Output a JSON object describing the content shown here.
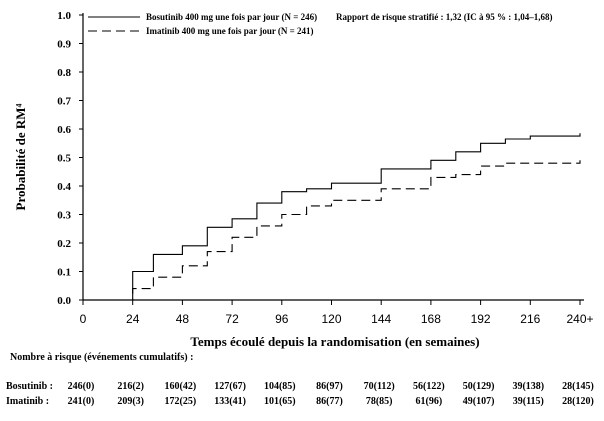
{
  "chart_data": {
    "type": "line",
    "ylabel": "Probabilité de RM⁴",
    "xlabel": "Temps écoulé depuis la randomisation (en semaines)",
    "annotation": "Rapport de risque stratifié : 1,32 (IC à 95 % : 1,04–1,68)",
    "xlim": [
      0,
      240
    ],
    "ylim": [
      0,
      1.0
    ],
    "x_ticks": [
      "0",
      "24",
      "48",
      "72",
      "96",
      "120",
      "144",
      "168",
      "192",
      "216",
      "240+"
    ],
    "y_ticks": [
      "0.0",
      "0.1",
      "0.2",
      "0.3",
      "0.4",
      "0.5",
      "0.6",
      "0.7",
      "0.8",
      "0.9",
      "1.0"
    ],
    "legend_position": "top-left",
    "series": [
      {
        "name": "Bosutinib 400 mg une fois par jour (N = 246)",
        "style": "solid",
        "points": [
          [
            0,
            0
          ],
          [
            24,
            0
          ],
          [
            24,
            0.1
          ],
          [
            34,
            0.1
          ],
          [
            34,
            0.16
          ],
          [
            48,
            0.16
          ],
          [
            48,
            0.19
          ],
          [
            60,
            0.19
          ],
          [
            60,
            0.255
          ],
          [
            72,
            0.255
          ],
          [
            72,
            0.285
          ],
          [
            84,
            0.285
          ],
          [
            84,
            0.34
          ],
          [
            96,
            0.34
          ],
          [
            96,
            0.38
          ],
          [
            108,
            0.38
          ],
          [
            108,
            0.39
          ],
          [
            120,
            0.39
          ],
          [
            120,
            0.41
          ],
          [
            144,
            0.41
          ],
          [
            144,
            0.46
          ],
          [
            168,
            0.46
          ],
          [
            168,
            0.49
          ],
          [
            180,
            0.49
          ],
          [
            180,
            0.52
          ],
          [
            192,
            0.52
          ],
          [
            192,
            0.55
          ],
          [
            204,
            0.55
          ],
          [
            204,
            0.565
          ],
          [
            216,
            0.565
          ],
          [
            216,
            0.575
          ],
          [
            240,
            0.575
          ],
          [
            240,
            0.585
          ]
        ]
      },
      {
        "name": "Imatinib 400 mg une fois par jour (N = 241)",
        "style": "dashed",
        "points": [
          [
            0,
            0
          ],
          [
            24,
            0
          ],
          [
            24,
            0.04
          ],
          [
            34,
            0.04
          ],
          [
            34,
            0.08
          ],
          [
            48,
            0.08
          ],
          [
            48,
            0.12
          ],
          [
            60,
            0.12
          ],
          [
            60,
            0.17
          ],
          [
            72,
            0.17
          ],
          [
            72,
            0.22
          ],
          [
            84,
            0.22
          ],
          [
            84,
            0.26
          ],
          [
            96,
            0.26
          ],
          [
            96,
            0.3
          ],
          [
            108,
            0.3
          ],
          [
            108,
            0.33
          ],
          [
            120,
            0.33
          ],
          [
            120,
            0.35
          ],
          [
            144,
            0.35
          ],
          [
            144,
            0.39
          ],
          [
            168,
            0.39
          ],
          [
            168,
            0.43
          ],
          [
            180,
            0.43
          ],
          [
            180,
            0.44
          ],
          [
            192,
            0.44
          ],
          [
            192,
            0.47
          ],
          [
            204,
            0.47
          ],
          [
            204,
            0.48
          ],
          [
            240,
            0.48
          ],
          [
            240,
            0.49
          ]
        ]
      }
    ]
  },
  "risk_table": {
    "title": "Nombre à risque (événements cumulatifs) :",
    "rows": [
      {
        "label": "Bosutinib :",
        "values": [
          "246(0)",
          "216(2)",
          "160(42)",
          "127(67)",
          "104(85)",
          "86(97)",
          "70(112)",
          "56(122)",
          "50(129)",
          "39(138)",
          "28(145)"
        ]
      },
      {
        "label": "Imatinib :",
        "values": [
          "241(0)",
          "209(3)",
          "172(25)",
          "133(41)",
          "101(65)",
          "86(77)",
          "78(85)",
          "61(96)",
          "49(107)",
          "39(115)",
          "28(120)"
        ]
      }
    ]
  }
}
